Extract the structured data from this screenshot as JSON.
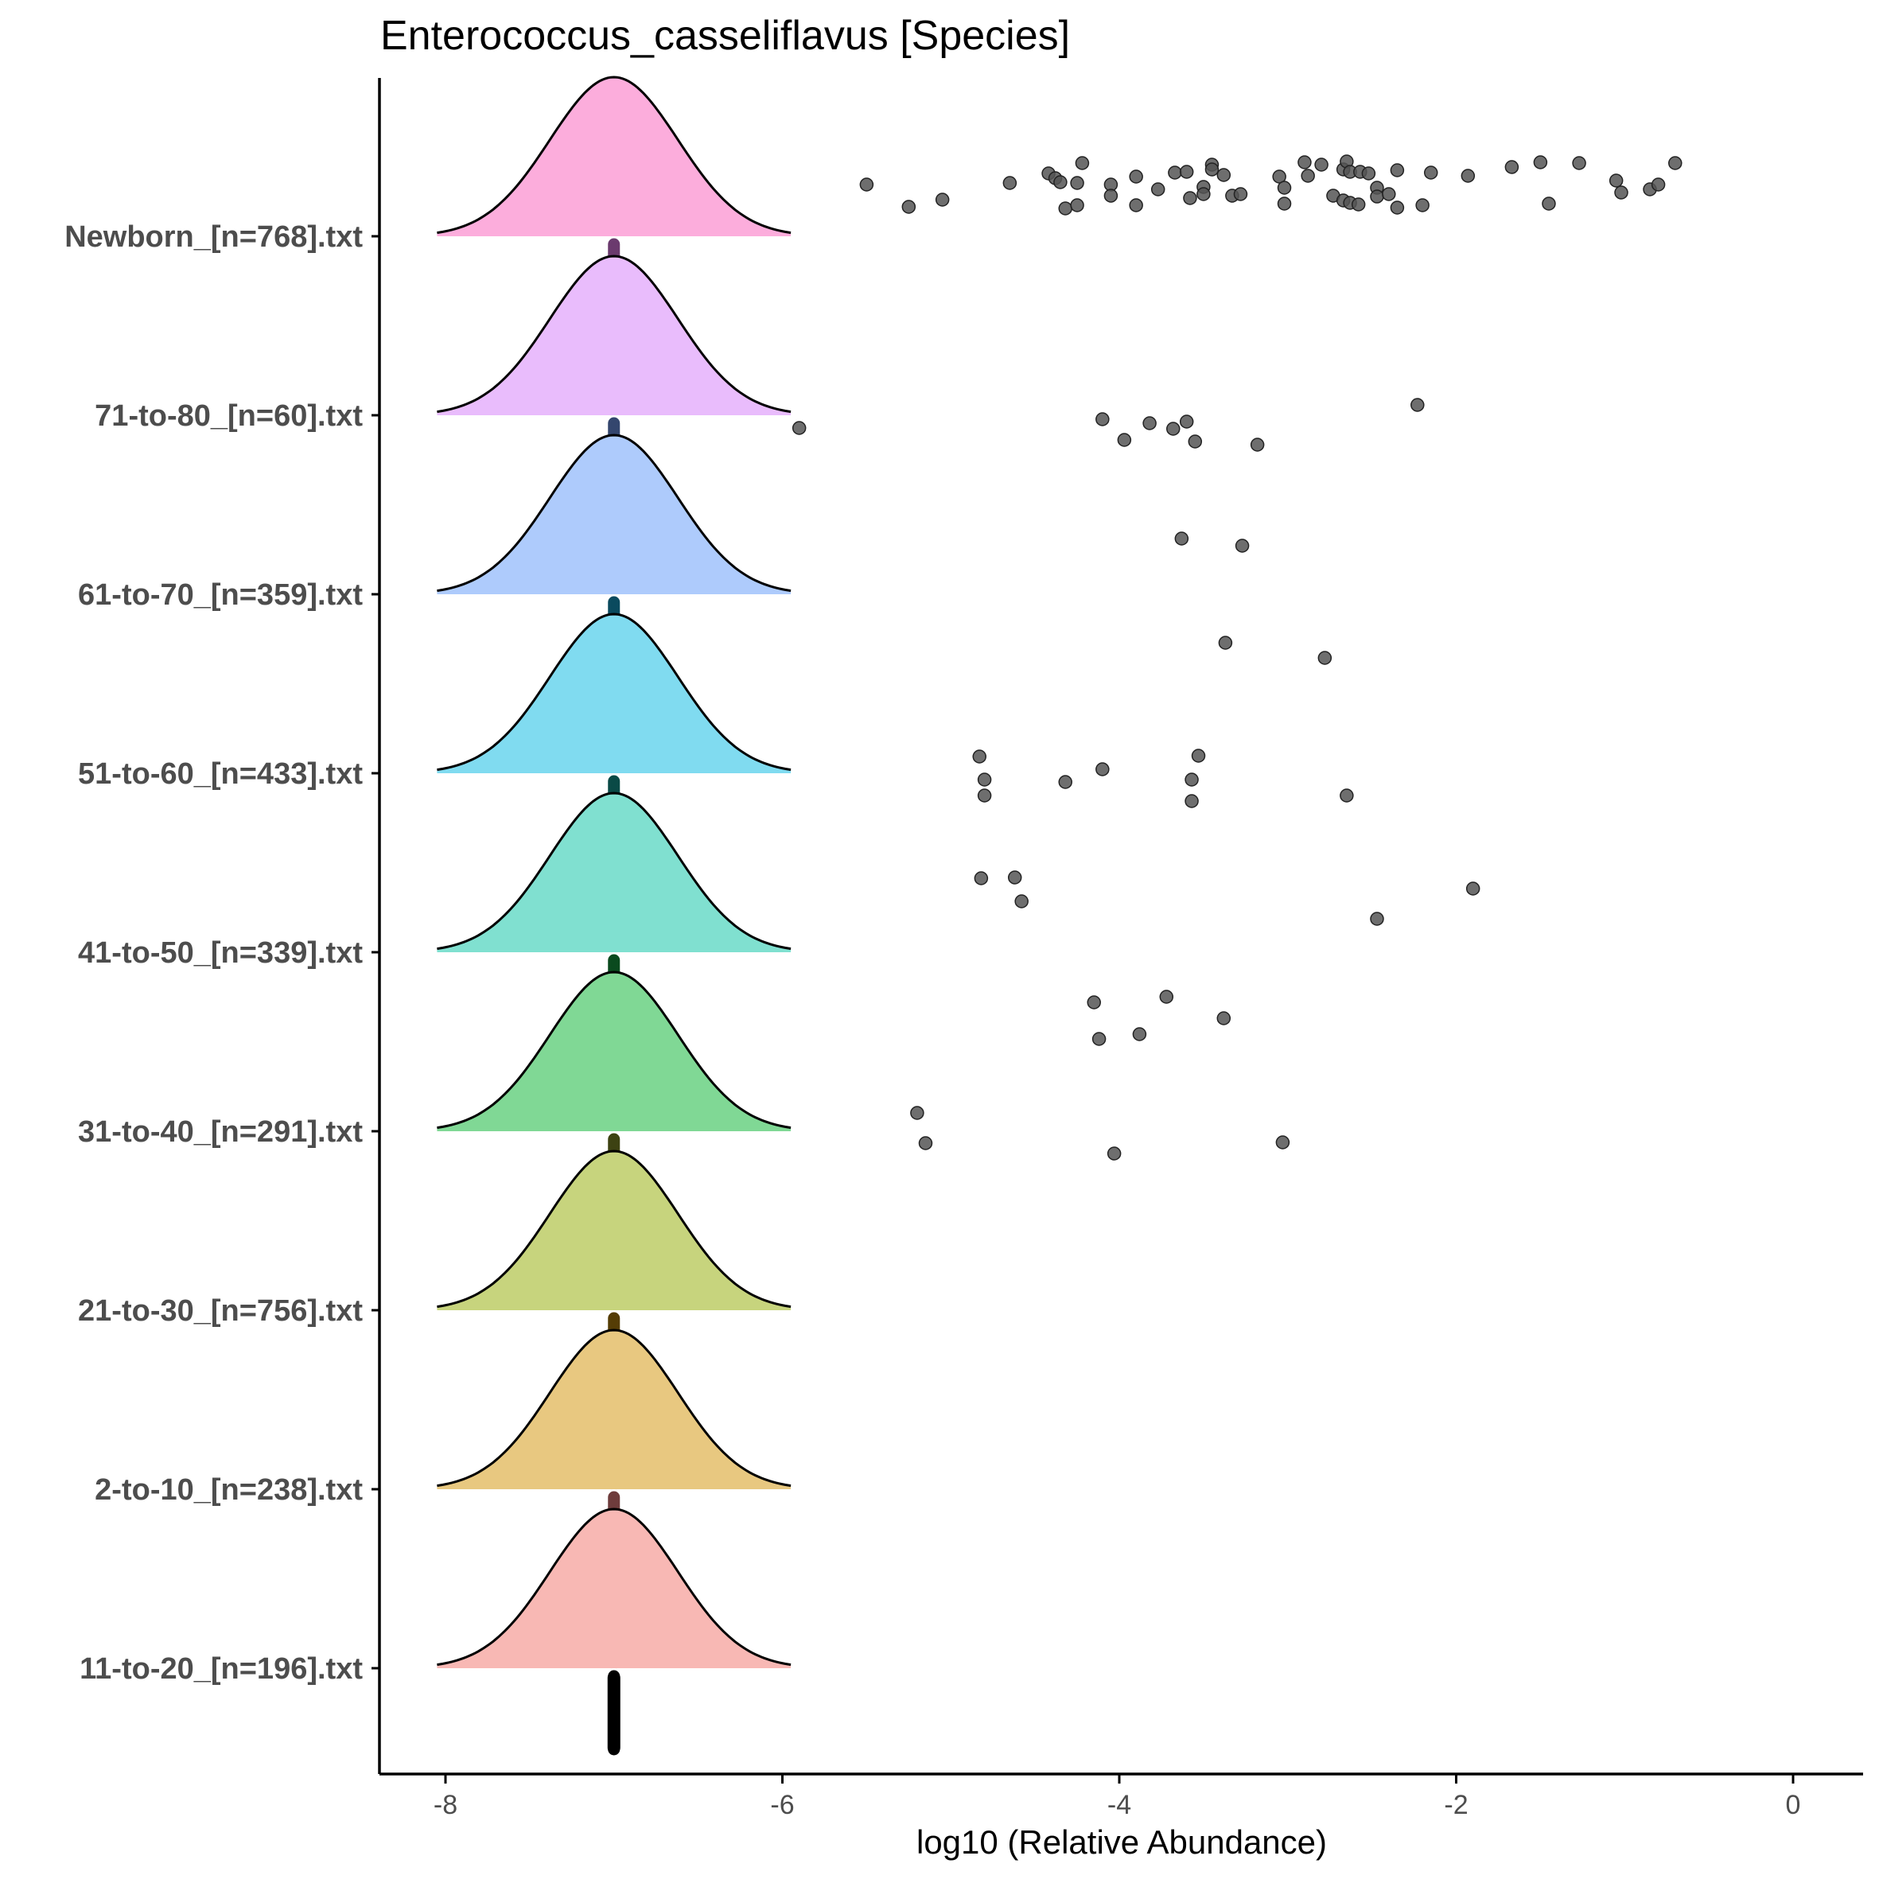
{
  "chart_data": {
    "type": "ridgeline",
    "title": "Enterococcus_casseliflavus [Species]",
    "xlabel": "log10 (Relative Abundance)",
    "ylabel": "",
    "xlim": [
      -8.35,
      0.65
    ],
    "x_ticks": [
      -8,
      -6,
      -4,
      -2,
      0
    ],
    "legend": "none",
    "grid": false,
    "density": {
      "center": -7.0,
      "halfwidth": 1.05,
      "sd": 0.38
    },
    "groups": [
      {
        "name": "Newborn_[n=768].txt",
        "color": "#fcaddc",
        "median_color": "#6b3a6e",
        "points": [
          [
            -5.5,
            232
          ],
          [
            -5.25,
            260
          ],
          [
            -5.05,
            251
          ],
          [
            -4.65,
            230
          ],
          [
            -4.42,
            218
          ],
          [
            -4.38,
            224
          ],
          [
            -4.35,
            229
          ],
          [
            -4.32,
            262
          ],
          [
            -4.22,
            205
          ],
          [
            -4.25,
            230
          ],
          [
            -4.25,
            258
          ],
          [
            -4.05,
            232
          ],
          [
            -4.05,
            246
          ],
          [
            -3.9,
            222
          ],
          [
            -3.9,
            258
          ],
          [
            -3.77,
            238
          ],
          [
            -3.67,
            217
          ],
          [
            -3.6,
            216
          ],
          [
            -3.58,
            249
          ],
          [
            -3.5,
            235
          ],
          [
            -3.5,
            244
          ],
          [
            -3.45,
            207
          ],
          [
            -3.45,
            213
          ],
          [
            -3.38,
            220
          ],
          [
            -3.33,
            246
          ],
          [
            -3.28,
            244
          ],
          [
            -3.05,
            222
          ],
          [
            -3.02,
            236
          ],
          [
            -3.02,
            256
          ],
          [
            -2.9,
            204
          ],
          [
            -2.88,
            221
          ],
          [
            -2.8,
            207
          ],
          [
            -2.73,
            246
          ],
          [
            -2.67,
            252
          ],
          [
            -2.67,
            213
          ],
          [
            -2.65,
            203
          ],
          [
            -2.63,
            216
          ],
          [
            -2.63,
            255
          ],
          [
            -2.58,
            257
          ],
          [
            -2.57,
            216
          ],
          [
            -2.52,
            218
          ],
          [
            -2.47,
            236
          ],
          [
            -2.47,
            247
          ],
          [
            -2.4,
            244
          ],
          [
            -2.35,
            214
          ],
          [
            -2.35,
            261
          ],
          [
            -2.2,
            258
          ],
          [
            -2.15,
            217
          ],
          [
            -1.93,
            221
          ],
          [
            -1.67,
            210
          ],
          [
            -1.5,
            204
          ],
          [
            -1.45,
            256
          ],
          [
            -1.27,
            205
          ],
          [
            -1.05,
            227
          ],
          [
            -1.02,
            242
          ],
          [
            -0.85,
            238
          ],
          [
            -0.8,
            232
          ],
          [
            -0.7,
            205
          ]
        ]
      },
      {
        "name": "71-to-80_[n=60].txt",
        "color": "#e9bcfc",
        "median_color": "#34466e",
        "points": []
      },
      {
        "name": "61-to-70_[n=359].txt",
        "color": "#aecbfc",
        "median_color": "#0a4a5e",
        "points": [
          [
            -5.9,
            538
          ],
          [
            -4.1,
            527
          ],
          [
            -3.97,
            553
          ],
          [
            -3.82,
            532
          ],
          [
            -3.68,
            539
          ],
          [
            -3.6,
            530
          ],
          [
            -3.55,
            555
          ],
          [
            -3.18,
            559
          ],
          [
            -2.23,
            509
          ]
        ]
      },
      {
        "name": "51-to-60_[n=433].txt",
        "color": "#80dbf0",
        "median_color": "#0a4a46",
        "points": [
          [
            -3.63,
            677
          ],
          [
            -3.27,
            686
          ]
        ]
      },
      {
        "name": "41-to-50_[n=339].txt",
        "color": "#80e0d0",
        "median_color": "#0a4a1e",
        "points": [
          [
            -3.37,
            808
          ],
          [
            -2.78,
            827
          ]
        ]
      },
      {
        "name": "31-to-40_[n=291].txt",
        "color": "#80d895",
        "median_color": "#3d4212",
        "points": [
          [
            -4.83,
            951
          ],
          [
            -4.8,
            980
          ],
          [
            -4.8,
            1000
          ],
          [
            -4.32,
            983
          ],
          [
            -4.1,
            967
          ],
          [
            -3.57,
            980
          ],
          [
            -3.57,
            1007
          ],
          [
            -3.53,
            950
          ],
          [
            -2.65,
            1000
          ]
        ]
      },
      {
        "name": "21-to-30_[n=756].txt",
        "color": "#c7d47d",
        "median_color": "#553d05",
        "points": [
          [
            -4.82,
            1104
          ],
          [
            -4.62,
            1103
          ],
          [
            -4.58,
            1133
          ],
          [
            -2.47,
            1155
          ],
          [
            -1.9,
            1117
          ]
        ]
      },
      {
        "name": "2-to-10_[n=238].txt",
        "color": "#e8c880",
        "median_color": "#6e3c3c",
        "points": [
          [
            -4.15,
            1260
          ],
          [
            -4.12,
            1306
          ],
          [
            -3.88,
            1300
          ],
          [
            -3.72,
            1253
          ],
          [
            -3.38,
            1280
          ]
        ]
      },
      {
        "name": "11-to-20_[n=196].txt",
        "color": "#f8b8b4",
        "median_color": "#000000",
        "points": [
          [
            -5.2,
            1399
          ],
          [
            -5.15,
            1437
          ],
          [
            -4.03,
            1450
          ],
          [
            -3.03,
            1436
          ]
        ]
      }
    ]
  }
}
